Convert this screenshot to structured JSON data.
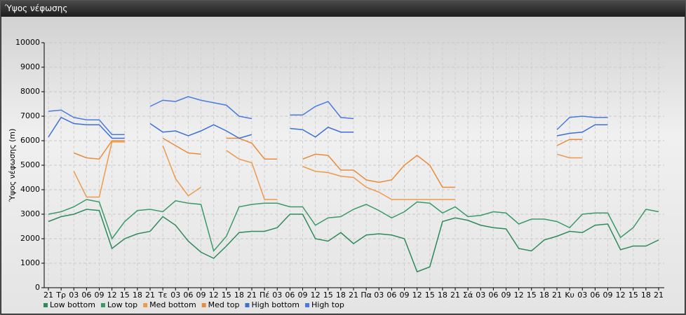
{
  "window": {
    "title": "Ύψος νέφωσης"
  },
  "chart_data": {
    "type": "line",
    "ylabel": "Ύψος νέφωσης (m)",
    "categories": [
      "21",
      "Τρ",
      "03",
      "06",
      "09",
      "12",
      "15",
      "18",
      "21",
      "Τε",
      "03",
      "06",
      "09",
      "12",
      "15",
      "18",
      "21",
      "Πέ",
      "03",
      "06",
      "09",
      "12",
      "15",
      "18",
      "21",
      "Πα",
      "03",
      "06",
      "09",
      "12",
      "15",
      "18",
      "21",
      "Σά",
      "03",
      "06",
      "09",
      "12",
      "15",
      "18",
      "21",
      "Κυ",
      "03",
      "06",
      "09",
      "12",
      "15",
      "18",
      "21"
    ],
    "ylim": [
      0,
      10000
    ],
    "yticks": [
      0,
      1000,
      2000,
      3000,
      4000,
      5000,
      6000,
      7000,
      8000,
      9000,
      10000
    ],
    "grid": true,
    "legend": "bottom-left",
    "series": [
      {
        "name": "Low bottom",
        "color": "#2f8a5a",
        "values": [
          2700,
          2900,
          3000,
          3200,
          3150,
          1600,
          2000,
          2200,
          2300,
          2900,
          2550,
          1900,
          1450,
          1200,
          1700,
          2250,
          2300,
          2300,
          2450,
          3000,
          3000,
          2000,
          1900,
          2250,
          1800,
          2150,
          2200,
          2150,
          2000,
          650,
          850,
          2700,
          2850,
          2750,
          2550,
          2450,
          2400,
          1600,
          1500,
          1950,
          2100,
          2300,
          2250,
          2550,
          2600,
          1550,
          1700,
          1700,
          1950
        ]
      },
      {
        "name": "Low top",
        "color": "#3a9a66",
        "values": [
          3000,
          3100,
          3300,
          3600,
          3500,
          2000,
          2700,
          3150,
          3200,
          3100,
          3550,
          3450,
          3400,
          1500,
          2100,
          3300,
          3400,
          3450,
          3450,
          3300,
          3300,
          2550,
          2850,
          2900,
          3200,
          3400,
          3150,
          2850,
          3100,
          3500,
          3450,
          3050,
          3300,
          2900,
          2950,
          3100,
          3050,
          2600,
          2800,
          2800,
          2700,
          2450,
          3000,
          3050,
          3050,
          2050,
          2450,
          3200,
          3100
        ]
      },
      {
        "name": "Med bottom",
        "color": "#ee9a4a",
        "values": [
          null,
          null,
          4750,
          3700,
          3700,
          5950,
          5950,
          null,
          null,
          5800,
          4450,
          3750,
          4100,
          null,
          5600,
          5250,
          5100,
          3600,
          3600,
          null,
          4950,
          4750,
          4700,
          4550,
          4500,
          4100,
          3900,
          3600,
          3600,
          3600,
          3600,
          3600,
          3600,
          null,
          null,
          null,
          null,
          null,
          null,
          null,
          5450,
          5300,
          5300,
          null,
          null,
          null,
          null,
          null,
          null
        ]
      },
      {
        "name": "Med top",
        "color": "#e88c3a",
        "values": [
          null,
          null,
          5500,
          5300,
          5250,
          6000,
          6000,
          null,
          null,
          6100,
          5800,
          5500,
          5450,
          null,
          6100,
          6100,
          5900,
          5250,
          5250,
          null,
          5250,
          5450,
          5400,
          4800,
          4800,
          4400,
          4300,
          4400,
          5000,
          5400,
          5000,
          4100,
          4100,
          null,
          null,
          null,
          null,
          null,
          null,
          null,
          5800,
          6050,
          6050,
          null,
          null,
          null,
          null,
          null,
          null
        ]
      },
      {
        "name": "High bottom",
        "color": "#3d6fd6",
        "values": [
          6150,
          6950,
          6700,
          6650,
          6650,
          6100,
          6100,
          null,
          6700,
          6350,
          6400,
          6200,
          6400,
          6650,
          6400,
          6100,
          6250,
          null,
          null,
          6500,
          6450,
          6150,
          6550,
          6350,
          6350,
          null,
          null,
          null,
          null,
          null,
          null,
          null,
          null,
          null,
          null,
          null,
          null,
          null,
          null,
          null,
          6200,
          6300,
          6350,
          6650,
          6650,
          null,
          null,
          null,
          null
        ]
      },
      {
        "name": "High top",
        "color": "#4a7ae0",
        "values": [
          7200,
          7250,
          6950,
          6850,
          6850,
          6250,
          6250,
          null,
          7400,
          7650,
          7600,
          7800,
          7650,
          7550,
          7450,
          7000,
          6900,
          null,
          null,
          7050,
          7050,
          7400,
          7600,
          6950,
          6900,
          null,
          null,
          null,
          null,
          null,
          null,
          null,
          null,
          null,
          null,
          null,
          null,
          null,
          null,
          null,
          6450,
          6950,
          7000,
          6950,
          6950,
          null,
          null,
          null,
          null
        ]
      }
    ]
  }
}
